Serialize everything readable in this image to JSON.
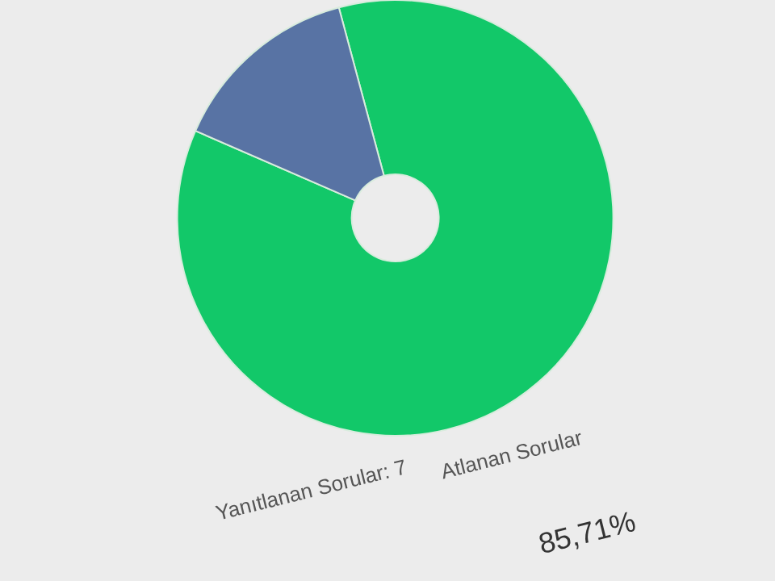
{
  "chart_data": {
    "type": "donut",
    "categories": [
      null,
      null
    ],
    "values": [
      85.71,
      14.29
    ],
    "colors": [
      "#12c869",
      "#5873a4"
    ],
    "value_labels": [
      "85,71%",
      null
    ],
    "annotations": [
      "Yanıtlanan Sorular: 7",
      "Atlanan Sorular"
    ]
  }
}
